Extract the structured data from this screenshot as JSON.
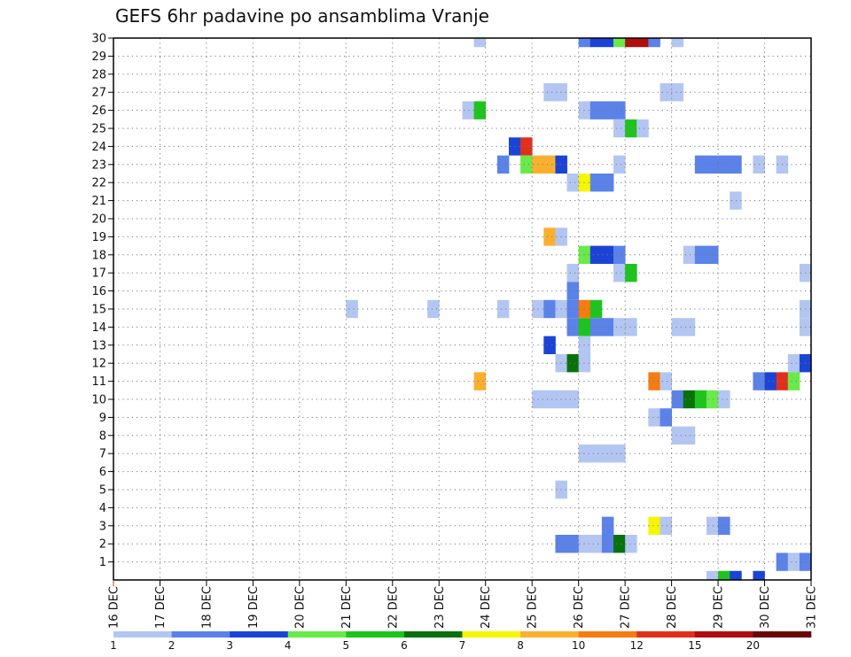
{
  "chart_data": {
    "type": "heatmap",
    "title": "GEFS 6hr padavine po ansamblima Vranje",
    "xlabel": "",
    "ylabel": "",
    "x_dates": [
      "16 DEC",
      "17 DEC",
      "18 DEC",
      "19 DEC",
      "20 DEC",
      "21 DEC",
      "22 DEC",
      "23 DEC",
      "24 DEC",
      "25 DEC",
      "26 DEC",
      "27 DEC",
      "28 DEC",
      "29 DEC",
      "30 DEC",
      "31 DEC"
    ],
    "x_range_days": [
      0,
      15
    ],
    "y_ticks": [
      1,
      2,
      3,
      4,
      5,
      6,
      7,
      8,
      9,
      10,
      11,
      12,
      13,
      14,
      15,
      16,
      17,
      18,
      19,
      20,
      21,
      22,
      23,
      24,
      25,
      26,
      27,
      28,
      29,
      30
    ],
    "y_range": [
      0,
      30
    ],
    "grid": true,
    "colorbar": {
      "levels": [
        "1",
        "2",
        "3",
        "4",
        "5",
        "6",
        "7",
        "8",
        "10",
        "12",
        "15",
        "20"
      ],
      "colors": [
        "#b3c6f2",
        "#5b82e8",
        "#1b44d6",
        "#6aea4a",
        "#1ec41e",
        "#08720a",
        "#f6f600",
        "#f9b02e",
        "#f67c10",
        "#e0301c",
        "#b00e0e",
        "#6a0808"
      ]
    },
    "series_note": "cells: [day_offset_from_16_DEC, member_row, color_index]",
    "cells": [
      [
        7.75,
        30,
        0
      ],
      [
        10.0,
        30,
        1
      ],
      [
        10.25,
        30,
        2
      ],
      [
        10.5,
        30,
        2
      ],
      [
        10.75,
        30,
        3
      ],
      [
        11.0,
        30,
        10
      ],
      [
        11.25,
        30,
        10
      ],
      [
        11.5,
        30,
        1
      ],
      [
        12.0,
        30,
        0
      ],
      [
        9.25,
        27,
        0
      ],
      [
        9.5,
        27,
        0
      ],
      [
        11.75,
        27,
        0
      ],
      [
        12.0,
        27,
        0
      ],
      [
        7.5,
        26,
        0
      ],
      [
        7.75,
        26,
        4
      ],
      [
        10.0,
        26,
        0
      ],
      [
        10.25,
        26,
        1
      ],
      [
        10.5,
        26,
        1
      ],
      [
        10.75,
        26,
        1
      ],
      [
        10.75,
        25,
        0
      ],
      [
        11.0,
        25,
        4
      ],
      [
        11.25,
        25,
        0
      ],
      [
        8.5,
        24,
        2
      ],
      [
        8.75,
        24,
        9
      ],
      [
        8.25,
        23,
        1
      ],
      [
        8.75,
        23,
        3
      ],
      [
        9.0,
        23,
        7
      ],
      [
        9.25,
        23,
        7
      ],
      [
        9.5,
        23,
        2
      ],
      [
        10.75,
        23,
        0
      ],
      [
        12.5,
        23,
        1
      ],
      [
        12.75,
        23,
        1
      ],
      [
        13.0,
        23,
        1
      ],
      [
        13.25,
        23,
        1
      ],
      [
        13.75,
        23,
        0
      ],
      [
        14.25,
        23,
        0
      ],
      [
        9.75,
        22,
        0
      ],
      [
        10.0,
        22,
        6
      ],
      [
        10.25,
        22,
        1
      ],
      [
        10.5,
        22,
        1
      ],
      [
        13.25,
        21,
        0
      ],
      [
        9.25,
        19,
        7
      ],
      [
        9.5,
        19,
        0
      ],
      [
        10.0,
        18,
        3
      ],
      [
        10.25,
        18,
        2
      ],
      [
        10.5,
        18,
        2
      ],
      [
        10.75,
        18,
        1
      ],
      [
        12.25,
        18,
        0
      ],
      [
        12.5,
        18,
        1
      ],
      [
        12.75,
        18,
        1
      ],
      [
        9.75,
        17,
        0
      ],
      [
        10.75,
        17,
        0
      ],
      [
        11.0,
        17,
        4
      ],
      [
        14.75,
        17,
        0
      ],
      [
        9.75,
        16,
        1
      ],
      [
        5.0,
        15,
        0
      ],
      [
        6.75,
        15,
        0
      ],
      [
        8.25,
        15,
        0
      ],
      [
        9.0,
        15,
        0
      ],
      [
        9.25,
        15,
        1
      ],
      [
        9.5,
        15,
        0
      ],
      [
        9.75,
        15,
        1
      ],
      [
        10.0,
        15,
        8
      ],
      [
        10.25,
        15,
        4
      ],
      [
        14.75,
        15,
        0
      ],
      [
        9.75,
        14,
        1
      ],
      [
        10.0,
        14,
        4
      ],
      [
        10.25,
        14,
        1
      ],
      [
        10.5,
        14,
        1
      ],
      [
        10.75,
        14,
        0
      ],
      [
        11.0,
        14,
        0
      ],
      [
        12.0,
        14,
        0
      ],
      [
        12.25,
        14,
        0
      ],
      [
        14.75,
        14,
        0
      ],
      [
        9.25,
        13,
        2
      ],
      [
        10.0,
        13,
        0
      ],
      [
        9.5,
        12,
        0
      ],
      [
        9.75,
        12,
        5
      ],
      [
        10.0,
        12,
        0
      ],
      [
        14.5,
        12,
        0
      ],
      [
        14.75,
        12,
        2
      ],
      [
        7.75,
        11,
        7
      ],
      [
        11.5,
        11,
        8
      ],
      [
        11.75,
        11,
        0
      ],
      [
        13.75,
        11,
        1
      ],
      [
        14.0,
        11,
        2
      ],
      [
        14.25,
        11,
        9
      ],
      [
        14.5,
        11,
        3
      ],
      [
        9.0,
        10,
        0
      ],
      [
        9.25,
        10,
        0
      ],
      [
        9.5,
        10,
        0
      ],
      [
        9.75,
        10,
        0
      ],
      [
        12.0,
        10,
        1
      ],
      [
        12.25,
        10,
        5
      ],
      [
        12.5,
        10,
        4
      ],
      [
        12.75,
        10,
        3
      ],
      [
        13.0,
        10,
        0
      ],
      [
        11.5,
        9,
        0
      ],
      [
        11.75,
        9,
        1
      ],
      [
        12.0,
        8,
        0
      ],
      [
        12.25,
        8,
        0
      ],
      [
        10.0,
        7,
        0
      ],
      [
        10.25,
        7,
        0
      ],
      [
        10.5,
        7,
        0
      ],
      [
        10.75,
        7,
        0
      ],
      [
        9.5,
        5,
        0
      ],
      [
        10.5,
        3,
        1
      ],
      [
        11.5,
        3,
        6
      ],
      [
        11.75,
        3,
        0
      ],
      [
        12.75,
        3,
        0
      ],
      [
        13.0,
        3,
        1
      ],
      [
        9.5,
        2,
        1
      ],
      [
        9.75,
        2,
        1
      ],
      [
        10.0,
        2,
        0
      ],
      [
        10.25,
        2,
        0
      ],
      [
        10.5,
        2,
        1
      ],
      [
        10.75,
        2,
        5
      ],
      [
        11.0,
        2,
        0
      ],
      [
        14.25,
        1,
        1
      ],
      [
        14.5,
        1,
        0
      ],
      [
        14.75,
        1,
        1
      ],
      [
        12.75,
        0,
        0
      ],
      [
        13.0,
        0,
        4
      ],
      [
        13.25,
        0,
        2
      ],
      [
        13.75,
        0,
        2
      ]
    ]
  }
}
